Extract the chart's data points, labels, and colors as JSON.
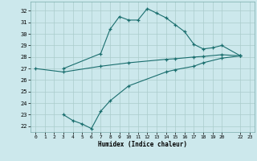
{
  "title": "",
  "xlabel": "Humidex (Indice chaleur)",
  "bg_color": "#cce8ec",
  "grid_color": "#aacccc",
  "line_color": "#1a6e6e",
  "xlim": [
    -0.5,
    23.5
  ],
  "ylim": [
    21.5,
    32.8
  ],
  "xticks": [
    0,
    1,
    2,
    3,
    4,
    5,
    6,
    7,
    8,
    9,
    10,
    11,
    12,
    13,
    14,
    15,
    16,
    17,
    18,
    19,
    20,
    22,
    23
  ],
  "yticks": [
    22,
    23,
    24,
    25,
    26,
    27,
    28,
    29,
    30,
    31,
    32
  ],
  "line1_x": [
    3,
    7,
    8,
    9,
    10,
    11,
    12,
    13,
    14,
    15,
    16,
    17,
    18,
    19,
    20,
    22
  ],
  "line1_y": [
    27.0,
    28.3,
    30.4,
    31.5,
    31.2,
    31.2,
    32.2,
    31.8,
    31.4,
    30.8,
    30.2,
    29.1,
    28.7,
    28.8,
    29.0,
    28.1
  ],
  "line2_x": [
    0,
    3,
    7,
    10,
    14,
    15,
    17,
    18,
    20,
    22
  ],
  "line2_y": [
    27.0,
    26.7,
    27.2,
    27.5,
    27.8,
    27.85,
    28.0,
    28.05,
    28.2,
    28.1
  ],
  "line3_x": [
    3,
    4,
    5,
    6,
    7,
    8,
    10,
    14,
    15,
    17,
    18,
    20,
    22
  ],
  "line3_y": [
    23.0,
    22.5,
    22.2,
    21.8,
    23.3,
    24.2,
    25.5,
    26.7,
    26.9,
    27.2,
    27.5,
    27.9,
    28.1
  ]
}
